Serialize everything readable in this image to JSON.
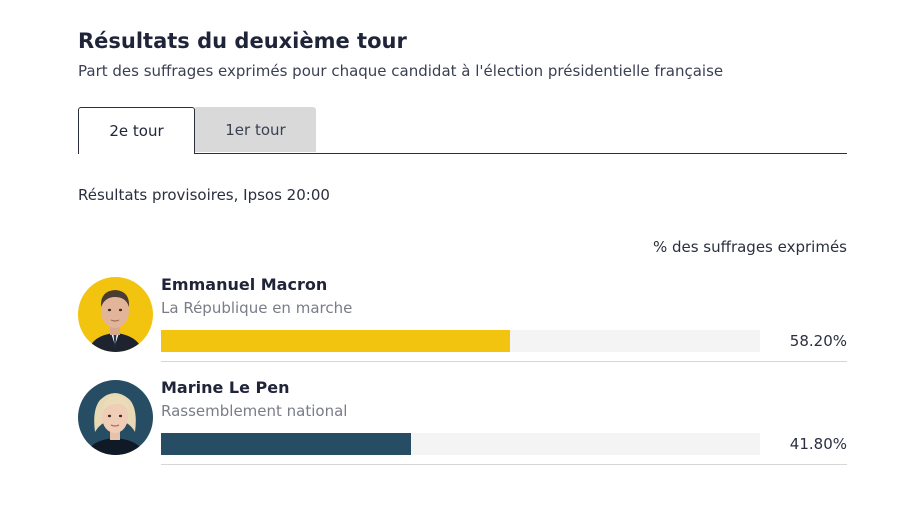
{
  "header": {
    "title": "Résultats du deuxième tour",
    "subtitle": "Part des suffrages exprimés pour chaque candidat à l'élection présidentielle française"
  },
  "tabs": [
    {
      "label": "2e tour",
      "active": true
    },
    {
      "label": "1er tour",
      "active": false
    }
  ],
  "note": "Résultats provisoires, Ipsos 20:00",
  "column_label": "% des suffrages exprimés",
  "colors": {
    "macron": "#f2c40f",
    "lepen": "#264d63",
    "track": "#f4f4f4"
  },
  "chart_data": {
    "type": "bar",
    "orientation": "horizontal",
    "xlim": [
      0,
      100
    ],
    "grid": false,
    "categories": [
      "Emmanuel Macron",
      "Marine Le Pen"
    ],
    "values": [
      58.2,
      41.8
    ],
    "parties": [
      "La République en marche",
      "Rassemblement national"
    ],
    "value_labels": [
      "58.20%",
      "41.80%"
    ],
    "colors": [
      "#f2c40f",
      "#264d63"
    ],
    "avatars": [
      "macron-portrait",
      "lepen-portrait"
    ]
  }
}
